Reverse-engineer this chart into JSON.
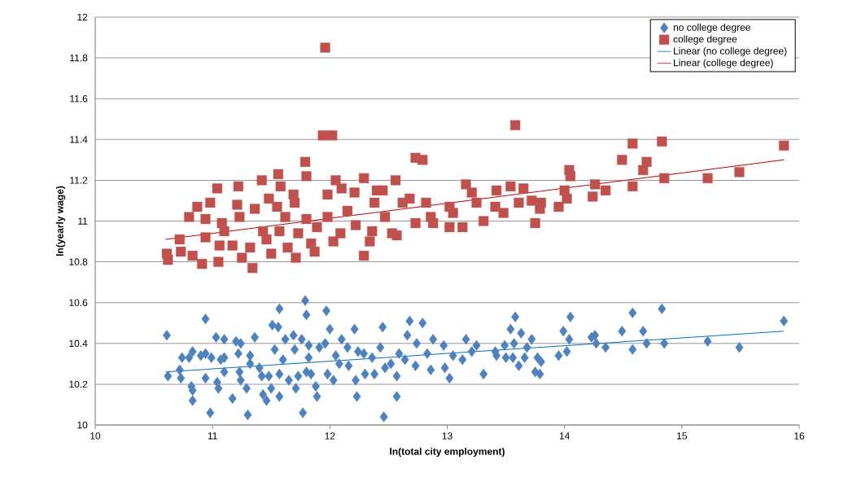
{
  "chart_data": {
    "type": "scatter",
    "xlabel": "ln(total city employment)",
    "ylabel": "ln(yearly wage)",
    "xlim": [
      10,
      16
    ],
    "xticks": [
      10,
      11,
      12,
      13,
      14,
      15,
      16
    ],
    "ylim": [
      10,
      12
    ],
    "yticks": [
      10,
      10.2,
      10.4,
      10.6,
      10.8,
      11,
      11.2,
      11.4,
      11.6,
      11.8,
      12
    ],
    "grid": "y",
    "legend": "top right",
    "series": [
      {
        "name": "no college degree",
        "marker": "diamond",
        "color": "#4f81bd",
        "x": [
          10.61,
          10.62,
          10.72,
          10.73,
          10.74,
          10.8,
          10.83,
          10.82,
          10.83,
          10.83,
          10.9,
          10.94,
          10.94,
          10.94,
          10.99,
          10.98,
          11.03,
          11.04,
          11.05,
          11.07,
          11.1,
          11.1,
          11.1,
          11.17,
          11.2,
          11.22,
          11.24,
          11.23,
          11.24,
          11.29,
          11.3,
          11.32,
          11.32,
          11.36,
          11.4,
          11.42,
          11.43,
          11.46,
          11.48,
          11.5,
          11.51,
          11.56,
          11.57,
          11.53,
          11.57,
          11.57,
          11.6,
          11.62,
          11.65,
          11.69,
          11.7,
          11.71,
          11.73,
          11.76,
          11.77,
          11.79,
          11.8,
          11.82,
          11.82,
          11.8,
          11.84,
          11.88,
          11.89,
          11.91,
          11.96,
          11.97,
          11.98,
          12.0,
          12.03,
          12.05,
          12.08,
          12.1,
          12.15,
          12.16,
          12.21,
          12.22,
          12.23,
          12.24,
          12.29,
          12.3,
          12.36,
          12.38,
          12.43,
          12.45,
          12.46,
          12.47,
          12.52,
          12.57,
          12.57,
          12.59,
          12.64,
          12.66,
          12.68,
          12.73,
          12.74,
          12.79,
          12.83,
          12.86,
          12.88,
          12.97,
          12.98,
          13.02,
          13.05,
          13.13,
          13.16,
          13.25,
          13.21,
          13.31,
          13.41,
          13.42,
          13.49,
          13.5,
          13.54,
          13.58,
          13.56,
          13.57,
          13.61,
          13.63,
          13.66,
          13.68,
          13.72,
          13.77,
          13.8,
          13.75,
          13.79,
          13.95,
          13.99,
          14.02,
          14.04,
          14.05,
          14.23,
          14.26,
          14.27,
          14.35,
          14.49,
          14.58,
          14.58,
          14.67,
          14.7,
          14.83,
          14.85,
          15.22,
          15.49,
          15.87
        ],
        "values": [
          10.44,
          10.24,
          10.27,
          10.23,
          10.33,
          10.33,
          10.36,
          10.19,
          10.17,
          10.12,
          10.34,
          10.52,
          10.23,
          10.35,
          10.33,
          10.06,
          10.43,
          10.21,
          10.18,
          10.32,
          10.42,
          10.33,
          10.26,
          10.13,
          10.41,
          10.35,
          10.4,
          10.26,
          10.22,
          10.18,
          10.05,
          10.34,
          10.3,
          10.43,
          10.28,
          10.24,
          10.15,
          10.12,
          10.24,
          10.18,
          10.49,
          10.48,
          10.57,
          10.37,
          10.25,
          10.14,
          10.32,
          10.42,
          10.22,
          10.44,
          10.37,
          10.18,
          10.24,
          10.42,
          10.06,
          10.61,
          10.54,
          10.39,
          10.33,
          10.26,
          10.25,
          10.19,
          10.14,
          10.38,
          10.4,
          10.56,
          10.25,
          10.47,
          10.22,
          10.34,
          10.3,
          10.42,
          10.38,
          10.29,
          10.47,
          10.22,
          10.14,
          10.36,
          10.35,
          10.25,
          10.33,
          10.25,
          10.38,
          10.48,
          10.04,
          10.28,
          10.3,
          10.24,
          10.14,
          10.35,
          10.32,
          10.44,
          10.51,
          10.29,
          10.4,
          10.5,
          10.35,
          10.27,
          10.42,
          10.39,
          10.28,
          10.23,
          10.34,
          10.32,
          10.42,
          10.39,
          10.36,
          10.25,
          10.36,
          10.34,
          10.39,
          10.33,
          10.47,
          10.53,
          10.33,
          10.4,
          10.29,
          10.45,
          10.33,
          10.38,
          10.42,
          10.33,
          10.31,
          10.26,
          10.25,
          10.34,
          10.46,
          10.36,
          10.42,
          10.53,
          10.43,
          10.44,
          10.4,
          10.38,
          10.46,
          10.55,
          10.37,
          10.46,
          10.4,
          10.57,
          10.4,
          10.41,
          10.38,
          10.51
        ]
      },
      {
        "name": "college degree",
        "marker": "square",
        "color": "#c0504d",
        "x": [
          10.61,
          10.62,
          10.72,
          10.73,
          10.8,
          10.87,
          10.83,
          10.91,
          10.94,
          10.94,
          10.98,
          11.04,
          11.05,
          11.06,
          11.08,
          11.1,
          11.17,
          11.22,
          11.21,
          11.23,
          11.25,
          11.32,
          11.34,
          11.36,
          11.42,
          11.43,
          11.46,
          11.48,
          11.5,
          11.56,
          11.55,
          11.58,
          11.57,
          11.62,
          11.64,
          11.69,
          11.71,
          11.7,
          11.79,
          11.8,
          11.73,
          11.8,
          11.84,
          11.87,
          11.89,
          11.94,
          12.02,
          11.98,
          11.98,
          12.03,
          12.05,
          12.09,
          12.1,
          12.15,
          12.21,
          12.22,
          12.29,
          12.29,
          12.36,
          12.34,
          12.38,
          12.4,
          12.45,
          12.47,
          12.53,
          12.56,
          12.57,
          12.62,
          12.68,
          12.73,
          12.73,
          12.79,
          12.82,
          12.86,
          12.88,
          13.02,
          13.02,
          13.58,
          13.16,
          13.21,
          13.25,
          13.05,
          13.13,
          13.31,
          13.42,
          13.41,
          13.48,
          13.54,
          13.61,
          13.65,
          13.72,
          13.75,
          13.8,
          13.79,
          13.95,
          14.0,
          14.02,
          14.04,
          14.05,
          14.26,
          14.24,
          14.35,
          14.49,
          14.58,
          14.58,
          14.67,
          14.7,
          14.83,
          14.85,
          15.22,
          15.49,
          15.87,
          11.96
        ],
        "values": [
          10.84,
          10.81,
          10.91,
          10.85,
          11.02,
          11.07,
          10.83,
          10.79,
          10.92,
          11.01,
          11.09,
          11.16,
          10.8,
          10.88,
          10.99,
          10.95,
          10.88,
          11.17,
          11.08,
          11.02,
          10.82,
          10.87,
          10.77,
          11.06,
          11.2,
          10.95,
          10.91,
          11.11,
          10.84,
          11.23,
          11.07,
          11.17,
          10.95,
          11.02,
          10.87,
          11.13,
          10.82,
          11.09,
          11.29,
          11.22,
          10.94,
          11.01,
          10.89,
          10.85,
          10.97,
          11.42,
          11.42,
          11.13,
          11.02,
          10.9,
          11.2,
          10.94,
          11.16,
          11.05,
          11.14,
          10.98,
          11.21,
          10.83,
          10.95,
          10.9,
          11.09,
          11.15,
          11.15,
          11.02,
          10.94,
          11.2,
          10.93,
          11.09,
          11.11,
          10.99,
          11.31,
          11.3,
          11.09,
          11.02,
          10.99,
          10.97,
          11.07,
          11.47,
          11.18,
          11.14,
          11.09,
          11.04,
          10.97,
          11.0,
          11.15,
          11.07,
          11.04,
          11.17,
          11.09,
          11.16,
          11.1,
          10.99,
          11.09,
          11.06,
          11.07,
          11.15,
          11.11,
          11.25,
          11.22,
          11.18,
          11.12,
          11.15,
          11.3,
          11.38,
          11.17,
          11.25,
          11.29,
          11.39,
          11.21,
          11.21,
          11.24,
          11.37,
          11.85
        ]
      },
      {
        "name": "Linear (no college degree)",
        "type": "line",
        "marker": "none",
        "line_style": "solid",
        "color": "#0070c0",
        "x": [
          10.6,
          15.87
        ],
        "values": [
          10.26,
          10.46
        ]
      },
      {
        "name": "Linear (college degree)",
        "type": "line",
        "marker": "none",
        "line_style": "solid",
        "color": "#c00000",
        "x": [
          10.6,
          15.87
        ],
        "values": [
          10.91,
          11.3
        ]
      }
    ]
  }
}
